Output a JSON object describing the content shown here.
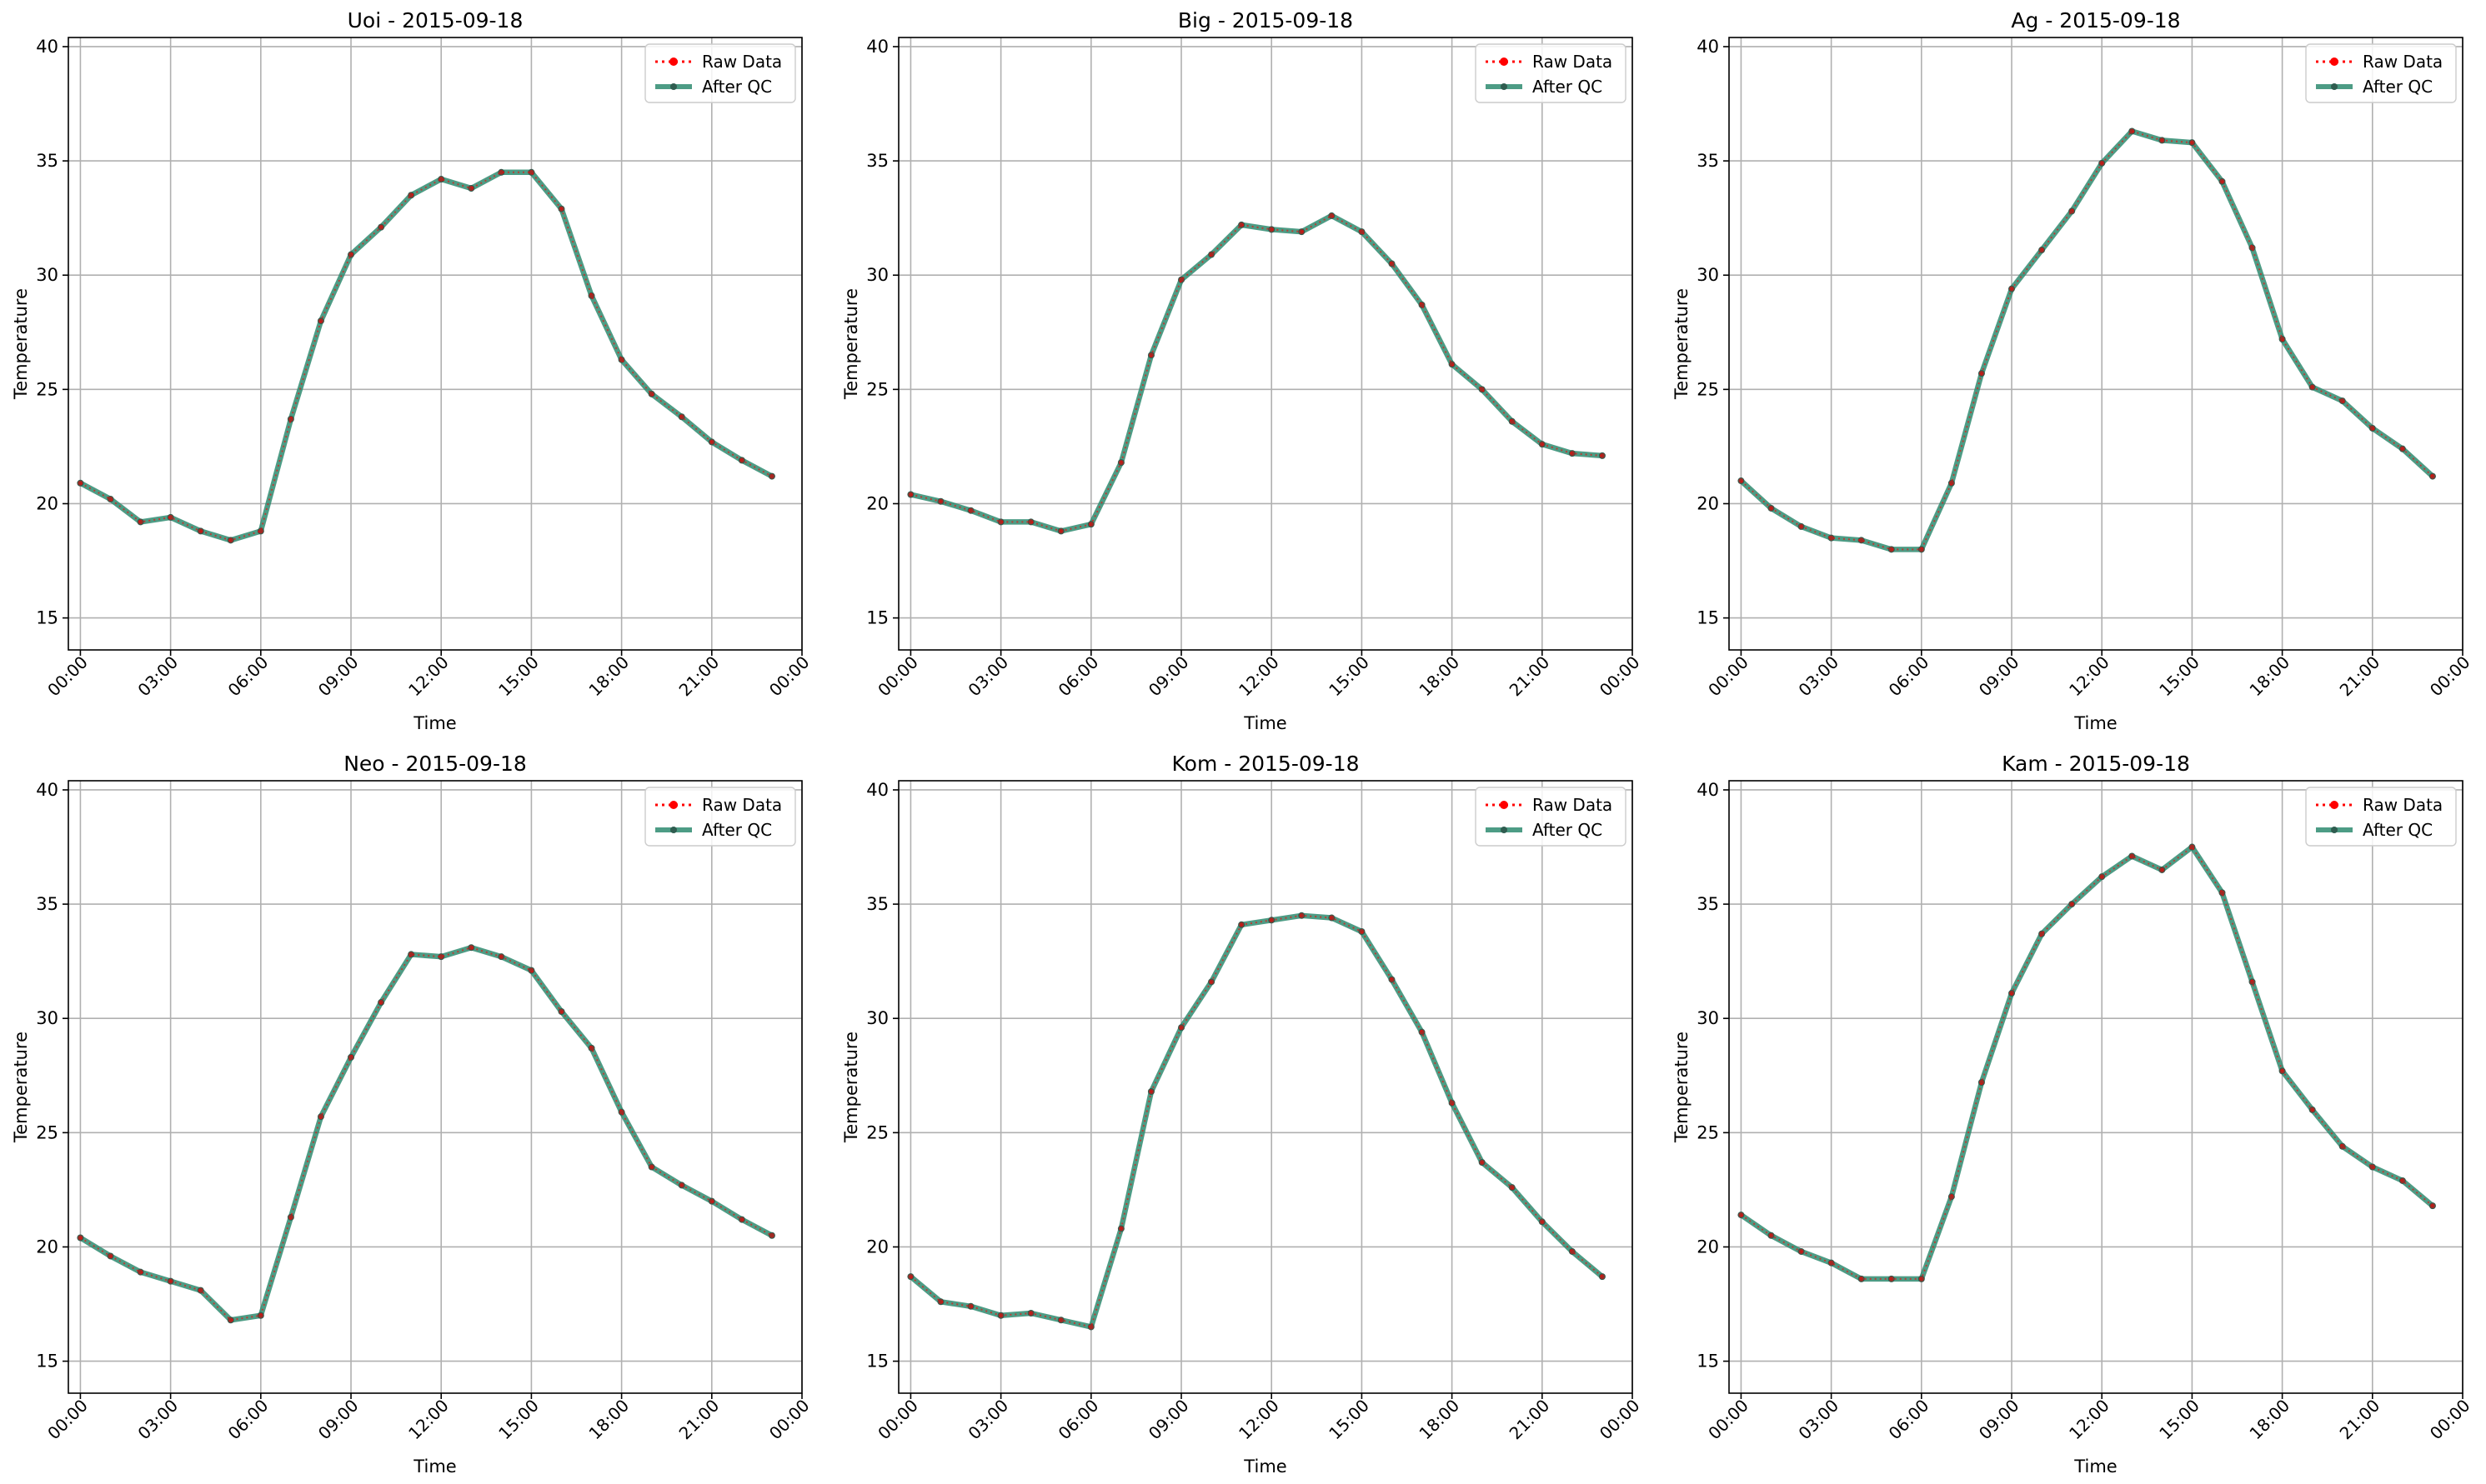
{
  "figure": {
    "legend": {
      "raw_label": "Raw Data",
      "qc_label": "After QC",
      "placement": "upper right"
    },
    "colors": {
      "raw": "#ff0000",
      "qc": "#2e8b70",
      "qc_marker": "#2f5d50",
      "grid": "#b0b0b0"
    }
  },
  "chart_data": [
    {
      "type": "line",
      "title": "Uoi - 2015-09-18",
      "xlabel": "Time",
      "ylabel": "Temperature",
      "ylim": [
        13.6,
        40.4
      ],
      "xlim": [
        -0.4,
        24.0
      ],
      "grid": true,
      "legend_placement": "top-right",
      "x_ticks": [
        "00:00",
        "03:00",
        "06:00",
        "09:00",
        "12:00",
        "15:00",
        "18:00",
        "21:00",
        "00:00"
      ],
      "y_ticks": [
        "15",
        "20",
        "25",
        "30",
        "35",
        "40"
      ],
      "x": [
        "00:00",
        "01:00",
        "02:00",
        "03:00",
        "04:00",
        "05:00",
        "06:00",
        "07:00",
        "08:00",
        "09:00",
        "10:00",
        "11:00",
        "12:00",
        "13:00",
        "14:00",
        "15:00",
        "16:00",
        "17:00",
        "18:00",
        "19:00",
        "20:00",
        "21:00",
        "22:00",
        "23:00"
      ],
      "series": [
        {
          "name": "Raw Data",
          "values": [
            20.9,
            20.2,
            19.2,
            19.4,
            18.8,
            18.4,
            18.8,
            23.7,
            28.0,
            30.9,
            32.1,
            33.5,
            34.2,
            33.8,
            34.5,
            34.5,
            32.9,
            29.1,
            26.3,
            24.8,
            23.8,
            22.7,
            21.9,
            21.2
          ]
        },
        {
          "name": "After QC",
          "values": [
            20.9,
            20.2,
            19.2,
            19.4,
            18.8,
            18.4,
            18.8,
            23.7,
            28.0,
            30.9,
            32.1,
            33.5,
            34.2,
            33.8,
            34.5,
            34.5,
            32.9,
            29.1,
            26.3,
            24.8,
            23.8,
            22.7,
            21.9,
            21.2
          ]
        }
      ]
    },
    {
      "type": "line",
      "title": "Big - 2015-09-18",
      "xlabel": "Time",
      "ylabel": "Temperature",
      "ylim": [
        13.6,
        40.4
      ],
      "xlim": [
        -0.4,
        24.0
      ],
      "grid": true,
      "legend_placement": "top-right",
      "x_ticks": [
        "00:00",
        "03:00",
        "06:00",
        "09:00",
        "12:00",
        "15:00",
        "18:00",
        "21:00",
        "00:00"
      ],
      "y_ticks": [
        "15",
        "20",
        "25",
        "30",
        "35",
        "40"
      ],
      "x": [
        "00:00",
        "01:00",
        "02:00",
        "03:00",
        "04:00",
        "05:00",
        "06:00",
        "07:00",
        "08:00",
        "09:00",
        "10:00",
        "11:00",
        "12:00",
        "13:00",
        "14:00",
        "15:00",
        "16:00",
        "17:00",
        "18:00",
        "19:00",
        "20:00",
        "21:00",
        "22:00",
        "23:00"
      ],
      "series": [
        {
          "name": "Raw Data",
          "values": [
            20.4,
            20.1,
            19.7,
            19.2,
            19.2,
            18.8,
            19.1,
            21.8,
            26.5,
            29.8,
            30.9,
            32.2,
            32.0,
            31.9,
            32.6,
            31.9,
            30.5,
            28.7,
            26.1,
            25.0,
            23.6,
            22.6,
            22.2,
            22.1
          ]
        },
        {
          "name": "After QC",
          "values": [
            20.4,
            20.1,
            19.7,
            19.2,
            19.2,
            18.8,
            19.1,
            21.8,
            26.5,
            29.8,
            30.9,
            32.2,
            32.0,
            31.9,
            32.6,
            31.9,
            30.5,
            28.7,
            26.1,
            25.0,
            23.6,
            22.6,
            22.2,
            22.1
          ]
        }
      ]
    },
    {
      "type": "line",
      "title": "Ag - 2015-09-18",
      "xlabel": "Time",
      "ylabel": "Temperature",
      "ylim": [
        13.6,
        40.4
      ],
      "xlim": [
        -0.4,
        24.0
      ],
      "grid": true,
      "legend_placement": "top-right",
      "x_ticks": [
        "00:00",
        "03:00",
        "06:00",
        "09:00",
        "12:00",
        "15:00",
        "18:00",
        "21:00",
        "00:00"
      ],
      "y_ticks": [
        "15",
        "20",
        "25",
        "30",
        "35",
        "40"
      ],
      "x": [
        "00:00",
        "01:00",
        "02:00",
        "03:00",
        "04:00",
        "05:00",
        "06:00",
        "07:00",
        "08:00",
        "09:00",
        "10:00",
        "11:00",
        "12:00",
        "13:00",
        "14:00",
        "15:00",
        "16:00",
        "17:00",
        "18:00",
        "19:00",
        "20:00",
        "21:00",
        "22:00",
        "23:00"
      ],
      "series": [
        {
          "name": "Raw Data",
          "values": [
            21.0,
            19.8,
            19.0,
            18.5,
            18.4,
            18.0,
            18.0,
            20.9,
            25.7,
            29.4,
            31.1,
            32.8,
            34.9,
            36.3,
            35.9,
            35.8,
            34.1,
            31.2,
            27.2,
            25.1,
            24.5,
            23.3,
            22.4,
            21.2
          ]
        },
        {
          "name": "After QC",
          "values": [
            21.0,
            19.8,
            19.0,
            18.5,
            18.4,
            18.0,
            18.0,
            20.9,
            25.7,
            29.4,
            31.1,
            32.8,
            34.9,
            36.3,
            35.9,
            35.8,
            34.1,
            31.2,
            27.2,
            25.1,
            24.5,
            23.3,
            22.4,
            21.2
          ]
        }
      ]
    },
    {
      "type": "line",
      "title": "Neo - 2015-09-18",
      "xlabel": "Time",
      "ylabel": "Temperature",
      "ylim": [
        13.6,
        40.4
      ],
      "xlim": [
        -0.4,
        24.0
      ],
      "grid": true,
      "legend_placement": "top-right",
      "x_ticks": [
        "00:00",
        "03:00",
        "06:00",
        "09:00",
        "12:00",
        "15:00",
        "18:00",
        "21:00",
        "00:00"
      ],
      "y_ticks": [
        "15",
        "20",
        "25",
        "30",
        "35",
        "40"
      ],
      "x": [
        "00:00",
        "01:00",
        "02:00",
        "03:00",
        "04:00",
        "05:00",
        "06:00",
        "07:00",
        "08:00",
        "09:00",
        "10:00",
        "11:00",
        "12:00",
        "13:00",
        "14:00",
        "15:00",
        "16:00",
        "17:00",
        "18:00",
        "19:00",
        "20:00",
        "21:00",
        "22:00",
        "23:00"
      ],
      "series": [
        {
          "name": "Raw Data",
          "values": [
            20.4,
            19.6,
            18.9,
            18.5,
            18.1,
            16.8,
            17.0,
            21.3,
            25.7,
            28.3,
            30.7,
            32.8,
            32.7,
            33.1,
            32.7,
            32.1,
            30.3,
            28.7,
            25.9,
            23.5,
            22.7,
            22.0,
            21.2,
            20.5
          ]
        },
        {
          "name": "After QC",
          "values": [
            20.4,
            19.6,
            18.9,
            18.5,
            18.1,
            16.8,
            17.0,
            21.3,
            25.7,
            28.3,
            30.7,
            32.8,
            32.7,
            33.1,
            32.7,
            32.1,
            30.3,
            28.7,
            25.9,
            23.5,
            22.7,
            22.0,
            21.2,
            20.5
          ]
        }
      ]
    },
    {
      "type": "line",
      "title": "Kom - 2015-09-18",
      "xlabel": "Time",
      "ylabel": "Temperature",
      "ylim": [
        13.6,
        40.4
      ],
      "xlim": [
        -0.4,
        24.0
      ],
      "grid": true,
      "legend_placement": "top-right",
      "x_ticks": [
        "00:00",
        "03:00",
        "06:00",
        "09:00",
        "12:00",
        "15:00",
        "18:00",
        "21:00",
        "00:00"
      ],
      "y_ticks": [
        "15",
        "20",
        "25",
        "30",
        "35",
        "40"
      ],
      "x": [
        "00:00",
        "01:00",
        "02:00",
        "03:00",
        "04:00",
        "05:00",
        "06:00",
        "07:00",
        "08:00",
        "09:00",
        "10:00",
        "11:00",
        "12:00",
        "13:00",
        "14:00",
        "15:00",
        "16:00",
        "17:00",
        "18:00",
        "19:00",
        "20:00",
        "21:00",
        "22:00",
        "23:00"
      ],
      "series": [
        {
          "name": "Raw Data",
          "values": [
            18.7,
            17.6,
            17.4,
            17.0,
            17.1,
            16.8,
            16.5,
            20.8,
            26.8,
            29.6,
            31.6,
            34.1,
            34.3,
            34.5,
            34.4,
            33.8,
            31.7,
            29.4,
            26.3,
            23.7,
            22.6,
            21.1,
            19.8,
            18.7
          ]
        },
        {
          "name": "After QC",
          "values": [
            18.7,
            17.6,
            17.4,
            17.0,
            17.1,
            16.8,
            16.5,
            20.8,
            26.8,
            29.6,
            31.6,
            34.1,
            34.3,
            34.5,
            34.4,
            33.8,
            31.7,
            29.4,
            26.3,
            23.7,
            22.6,
            21.1,
            19.8,
            18.7
          ]
        }
      ]
    },
    {
      "type": "line",
      "title": "Kam - 2015-09-18",
      "xlabel": "Time",
      "ylabel": "Temperature",
      "ylim": [
        13.6,
        40.4
      ],
      "xlim": [
        -0.4,
        24.0
      ],
      "grid": true,
      "legend_placement": "top-right",
      "x_ticks": [
        "00:00",
        "03:00",
        "06:00",
        "09:00",
        "12:00",
        "15:00",
        "18:00",
        "21:00",
        "00:00"
      ],
      "y_ticks": [
        "15",
        "20",
        "25",
        "30",
        "35",
        "40"
      ],
      "x": [
        "00:00",
        "01:00",
        "02:00",
        "03:00",
        "04:00",
        "05:00",
        "06:00",
        "07:00",
        "08:00",
        "09:00",
        "10:00",
        "11:00",
        "12:00",
        "13:00",
        "14:00",
        "15:00",
        "16:00",
        "17:00",
        "18:00",
        "19:00",
        "20:00",
        "21:00",
        "22:00",
        "23:00"
      ],
      "series": [
        {
          "name": "Raw Data",
          "values": [
            21.4,
            20.5,
            19.8,
            19.3,
            18.6,
            18.6,
            18.6,
            22.2,
            27.2,
            31.1,
            33.7,
            35.0,
            36.2,
            37.1,
            36.5,
            37.5,
            35.5,
            31.6,
            27.7,
            26.0,
            24.4,
            23.5,
            22.9,
            21.8
          ]
        },
        {
          "name": "After QC",
          "values": [
            21.4,
            20.5,
            19.8,
            19.3,
            18.6,
            18.6,
            18.6,
            22.2,
            27.2,
            31.1,
            33.7,
            35.0,
            36.2,
            37.1,
            36.5,
            37.5,
            35.5,
            31.6,
            27.7,
            26.0,
            24.4,
            23.5,
            22.9,
            21.8
          ]
        }
      ]
    }
  ]
}
